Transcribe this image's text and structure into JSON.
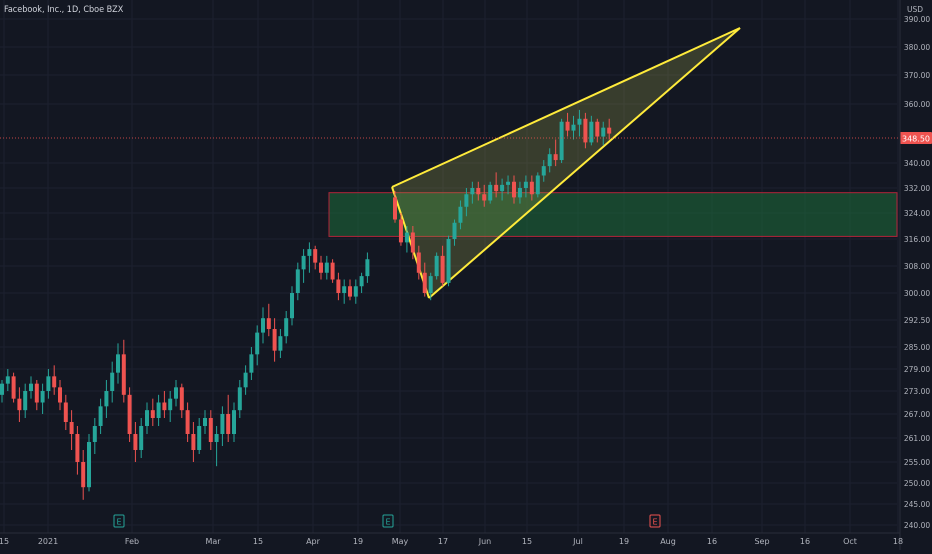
{
  "header": {
    "title": "Facebook, Inc., 1D, Cboe BZX"
  },
  "chart_data": {
    "type": "candlestick",
    "currency_label": "USD",
    "current_price": "348.50",
    "y_ticks": [
      "390.00",
      "380.00",
      "370.00",
      "360.00",
      "340.00",
      "332.00",
      "324.00",
      "316.00",
      "308.00",
      "300.00",
      "292.50",
      "285.00",
      "279.00",
      "273.00",
      "267.00",
      "261.00",
      "255.00",
      "250.00",
      "245.00",
      "240.00"
    ],
    "x_labels": [
      "15",
      "2021",
      "Feb",
      "Mar",
      "15",
      "Apr",
      "19",
      "May",
      "17",
      "Jun",
      "15",
      "Jul",
      "19",
      "Aug",
      "16",
      "Sep",
      "16",
      "Oct",
      "18"
    ],
    "earnings_markers": [
      "E",
      "E",
      "E"
    ],
    "colors": {
      "up": "#26a69a",
      "down": "#ef5350",
      "background": "#131722",
      "pattern": "#ffeb3b",
      "zone": "#1e6e3a",
      "zone_border": "#b2253a"
    },
    "candles": [
      [
        272,
        276,
        270,
        275
      ],
      [
        275,
        279,
        273,
        277
      ],
      [
        277,
        278,
        270,
        271
      ],
      [
        271,
        274,
        265,
        268
      ],
      [
        268,
        275,
        266,
        273
      ],
      [
        273,
        277,
        271,
        275
      ],
      [
        275,
        276,
        268,
        270
      ],
      [
        270,
        275,
        267,
        273
      ],
      [
        273,
        279,
        271,
        277
      ],
      [
        277,
        280,
        272,
        274
      ],
      [
        274,
        276,
        268,
        270
      ],
      [
        270,
        272,
        263,
        265
      ],
      [
        265,
        268,
        258,
        262
      ],
      [
        262,
        264,
        252,
        255
      ],
      [
        255,
        258,
        246,
        249
      ],
      [
        249,
        262,
        248,
        260
      ],
      [
        260,
        266,
        257,
        264
      ],
      [
        264,
        271,
        262,
        269
      ],
      [
        269,
        276,
        266,
        273
      ],
      [
        273,
        281,
        270,
        278
      ],
      [
        278,
        286,
        275,
        283
      ],
      [
        283,
        287,
        270,
        272
      ],
      [
        272,
        274,
        260,
        262
      ],
      [
        262,
        265,
        255,
        258
      ],
      [
        258,
        266,
        256,
        264
      ],
      [
        264,
        270,
        262,
        268
      ],
      [
        268,
        271,
        264,
        266
      ],
      [
        266,
        272,
        264,
        270
      ],
      [
        270,
        273,
        266,
        268
      ],
      [
        268,
        273,
        265,
        271
      ],
      [
        271,
        276,
        269,
        274
      ],
      [
        274,
        275,
        266,
        268
      ],
      [
        268,
        270,
        260,
        262
      ],
      [
        262,
        265,
        255,
        258
      ],
      [
        258,
        266,
        257,
        264
      ],
      [
        264,
        268,
        262,
        266
      ],
      [
        266,
        268,
        258,
        260
      ],
      [
        260,
        264,
        254,
        262
      ],
      [
        262,
        269,
        259,
        267
      ],
      [
        267,
        272,
        260,
        262
      ],
      [
        262,
        270,
        260,
        268
      ],
      [
        268,
        276,
        266,
        274
      ],
      [
        274,
        280,
        272,
        278
      ],
      [
        278,
        285,
        276,
        283
      ],
      [
        283,
        291,
        280,
        289
      ],
      [
        289,
        296,
        286,
        293
      ],
      [
        293,
        297,
        288,
        290
      ],
      [
        290,
        293,
        281,
        284
      ],
      [
        284,
        290,
        282,
        288
      ],
      [
        288,
        295,
        286,
        293
      ],
      [
        293,
        302,
        291,
        300
      ],
      [
        300,
        309,
        298,
        307
      ],
      [
        307,
        313,
        303,
        311
      ],
      [
        311,
        315,
        306,
        313
      ],
      [
        313,
        314,
        307,
        309
      ],
      [
        309,
        311,
        304,
        306
      ],
      [
        306,
        311,
        304,
        309
      ],
      [
        309,
        310,
        303,
        304
      ],
      [
        304,
        306,
        298,
        300
      ],
      [
        300,
        304,
        297,
        302
      ],
      [
        302,
        304,
        298,
        299
      ],
      [
        299,
        304,
        297,
        302
      ],
      [
        302,
        306,
        300,
        305
      ],
      [
        305,
        312,
        303,
        310
      ],
      [
        329,
        331,
        321,
        322
      ],
      [
        322,
        324,
        314,
        315
      ],
      [
        315,
        320,
        312,
        318
      ],
      [
        318,
        320,
        310,
        312
      ],
      [
        312,
        314,
        304,
        306
      ],
      [
        306,
        309,
        299,
        300
      ],
      [
        300,
        306,
        298,
        305
      ],
      [
        305,
        312,
        304,
        311
      ],
      [
        311,
        314,
        302,
        303
      ],
      [
        303,
        317,
        302,
        316
      ],
      [
        316,
        322,
        314,
        321
      ],
      [
        321,
        328,
        319,
        326
      ],
      [
        326,
        332,
        323,
        330
      ],
      [
        330,
        334,
        327,
        332
      ],
      [
        332,
        334,
        328,
        330
      ],
      [
        330,
        333,
        326,
        328
      ],
      [
        328,
        334,
        327,
        333
      ],
      [
        333,
        337,
        329,
        331
      ],
      [
        331,
        335,
        328,
        333
      ],
      [
        333,
        336,
        330,
        334
      ],
      [
        334,
        336,
        327,
        329
      ],
      [
        329,
        334,
        327,
        332
      ],
      [
        332,
        336,
        329,
        334
      ],
      [
        334,
        336,
        328,
        330
      ],
      [
        330,
        337,
        329,
        336
      ],
      [
        336,
        341,
        334,
        339
      ],
      [
        339,
        345,
        337,
        343
      ],
      [
        343,
        348,
        339,
        341
      ],
      [
        341,
        355,
        340,
        354
      ],
      [
        354,
        357,
        349,
        351
      ],
      [
        351,
        356,
        348,
        353
      ],
      [
        353,
        358,
        349,
        355
      ],
      [
        355,
        357,
        345,
        347
      ],
      [
        347,
        356,
        346,
        354
      ],
      [
        354,
        355,
        347,
        349
      ],
      [
        349,
        354,
        346,
        352
      ],
      [
        352,
        355,
        348,
        350
      ]
    ]
  }
}
